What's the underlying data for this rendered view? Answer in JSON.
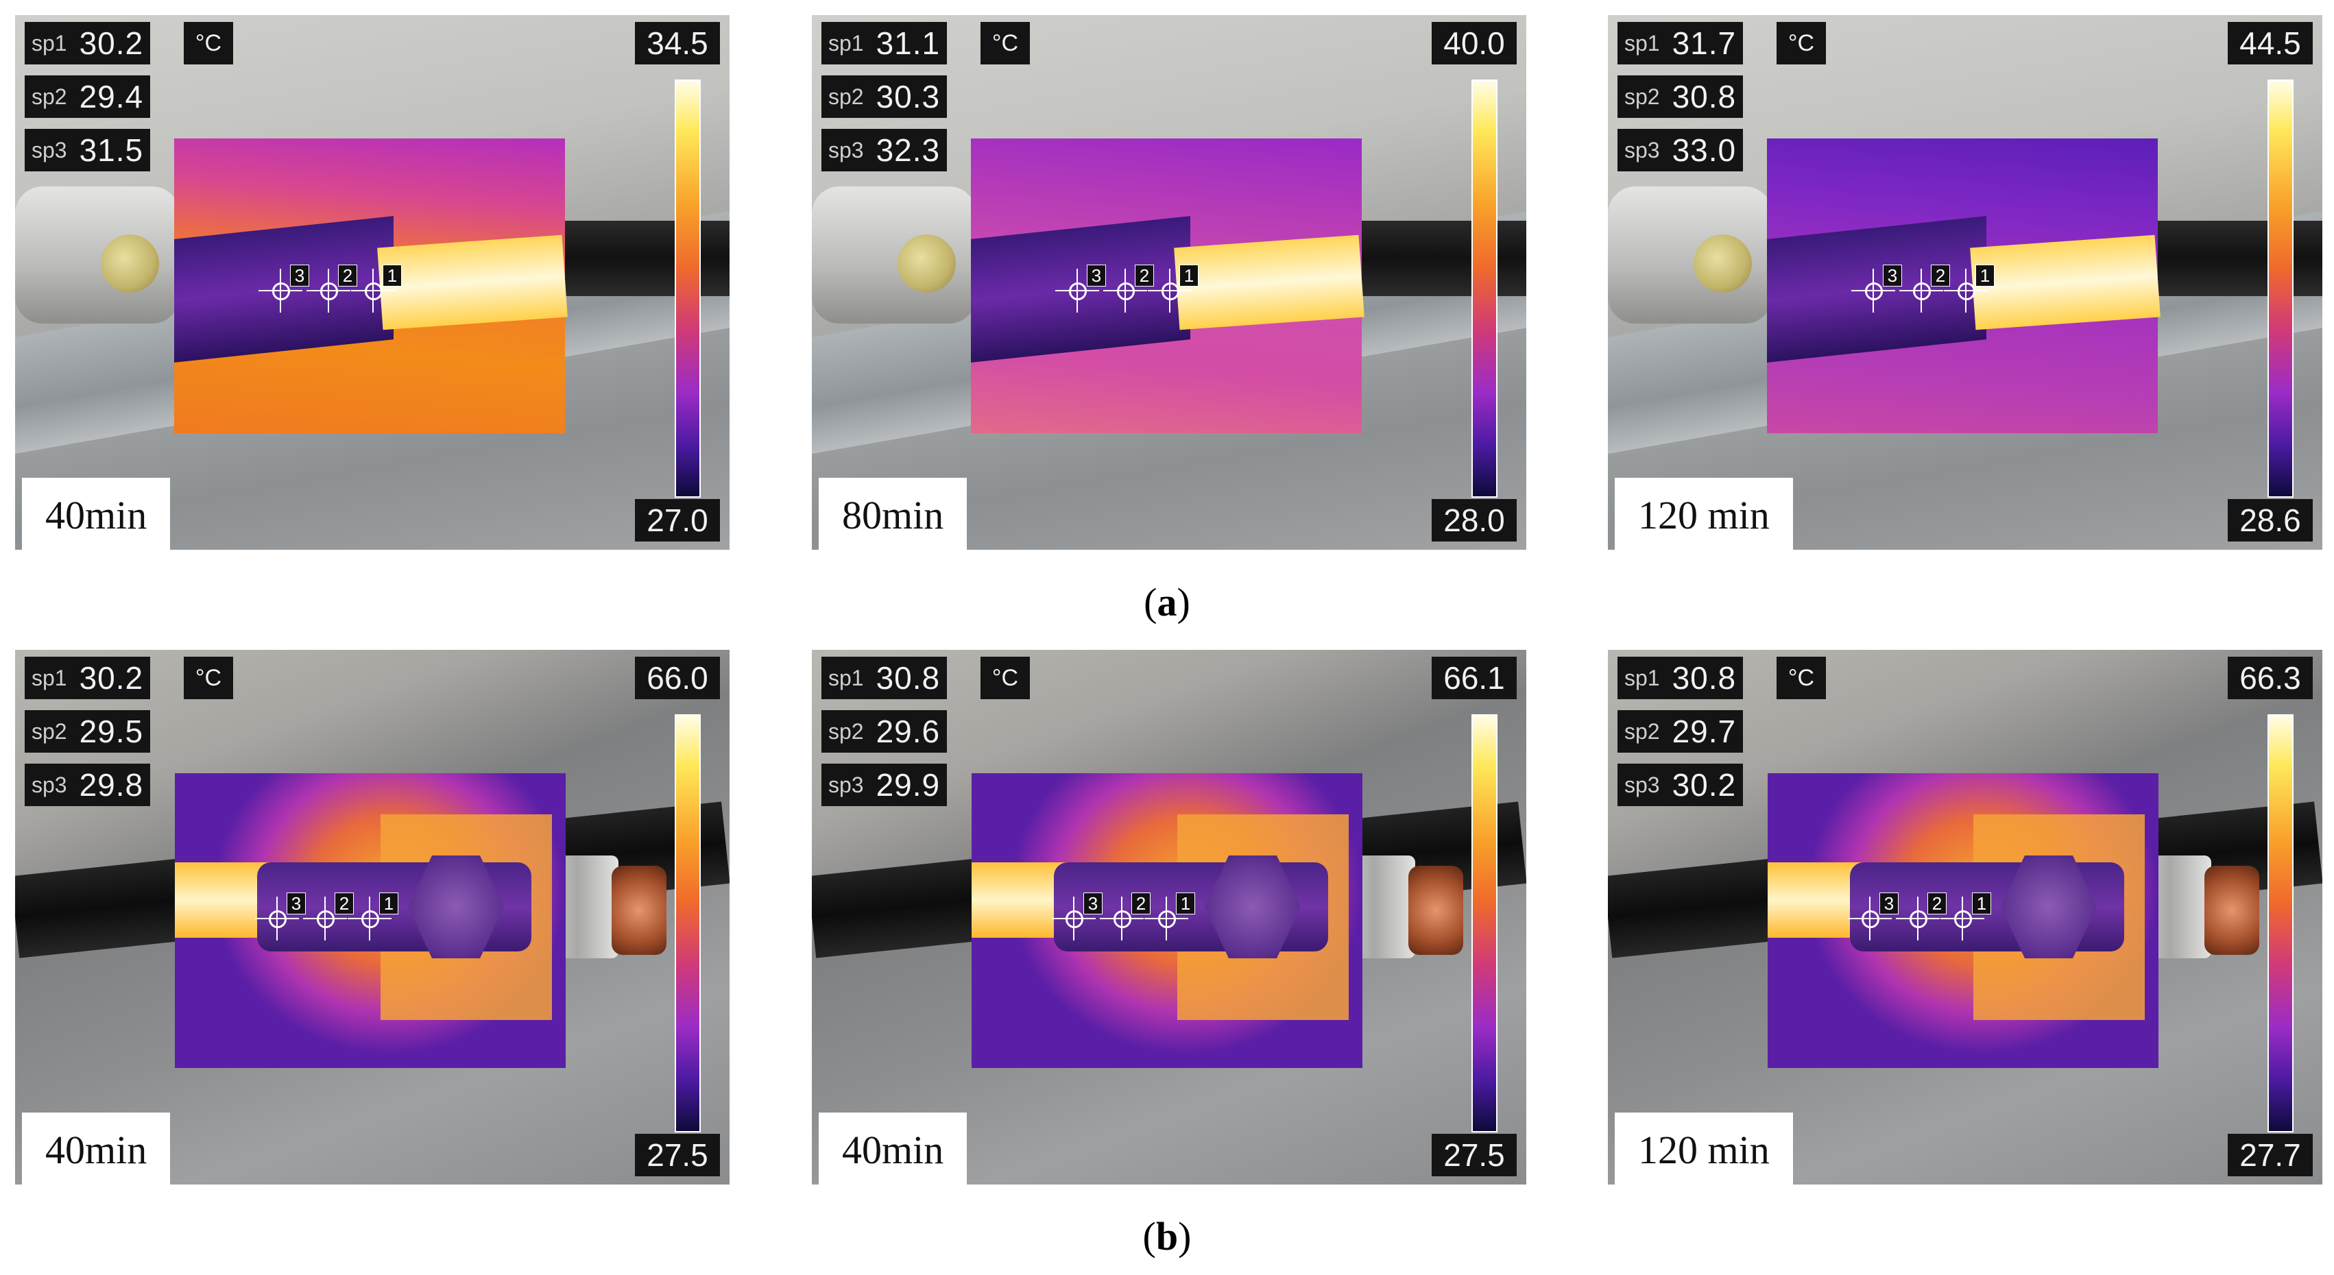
{
  "unit": "°C",
  "rows": [
    {
      "caption_letter": "a",
      "panels": [
        {
          "time": "40min",
          "sp1": "30.2",
          "sp2": "29.4",
          "sp3": "31.5",
          "max": "34.5",
          "min": "27.0",
          "palette": "ta1"
        },
        {
          "time": "80min",
          "sp1": "31.1",
          "sp2": "30.3",
          "sp3": "32.3",
          "max": "40.0",
          "min": "28.0",
          "palette": "ta2"
        },
        {
          "time": "120 min",
          "sp1": "31.7",
          "sp2": "30.8",
          "sp3": "33.0",
          "max": "44.5",
          "min": "28.6",
          "palette": "ta3"
        }
      ]
    },
    {
      "caption_letter": "b",
      "panels": [
        {
          "time": "40min",
          "sp1": "30.2",
          "sp2": "29.5",
          "sp3": "29.8",
          "max": "66.0",
          "min": "27.5",
          "palette": "tb"
        },
        {
          "time": "40min",
          "sp1": "30.8",
          "sp2": "29.6",
          "sp3": "29.9",
          "max": "66.1",
          "min": "27.5",
          "palette": "tb"
        },
        {
          "time": "120 min",
          "sp1": "30.8",
          "sp2": "29.7",
          "sp3": "30.2",
          "max": "66.3",
          "min": "27.7",
          "palette": "tb"
        }
      ]
    }
  ],
  "labels": {
    "sp1": "sp1",
    "sp2": "sp2",
    "sp3": "sp3",
    "pt1": "1",
    "pt2": "2",
    "pt3": "3"
  }
}
